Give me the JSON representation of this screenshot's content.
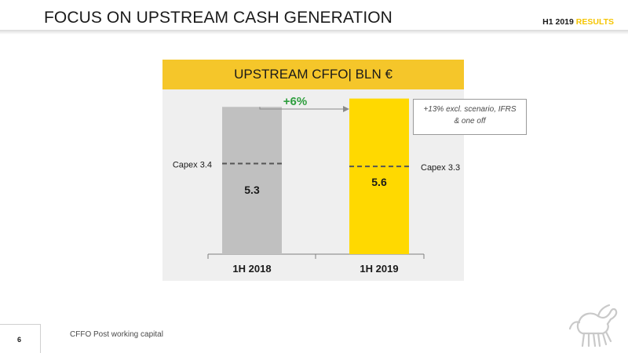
{
  "header": {
    "title": "FOCUS ON UPSTREAM CASH GENERATION",
    "period": "H1 2019",
    "period_accent": "RESULTS"
  },
  "chart_data": {
    "type": "bar",
    "title": "UPSTREAM CFFO| BLN €",
    "categories": [
      "1H 2018",
      "1H 2019"
    ],
    "values": [
      5.3,
      5.6
    ],
    "value_labels": [
      "5.3",
      "5.6"
    ],
    "bar_colors": [
      "#c0c0c0",
      "#ffd900"
    ],
    "capex": [
      3.4,
      3.3
    ],
    "capex_labels": [
      "Capex 3.4",
      "Capex 3.3"
    ],
    "growth_label": "+6%",
    "growth_color": "#2e9e3e",
    "ylim": [
      0,
      5.9
    ]
  },
  "note": {
    "line1": "+13% excl. scenario, IFRS",
    "line2": "& one off"
  },
  "footer": {
    "footnote": "CFFO Post working capital",
    "page": "6"
  },
  "colors": {
    "accent": "#f5c62a",
    "panel": "#efefef"
  }
}
